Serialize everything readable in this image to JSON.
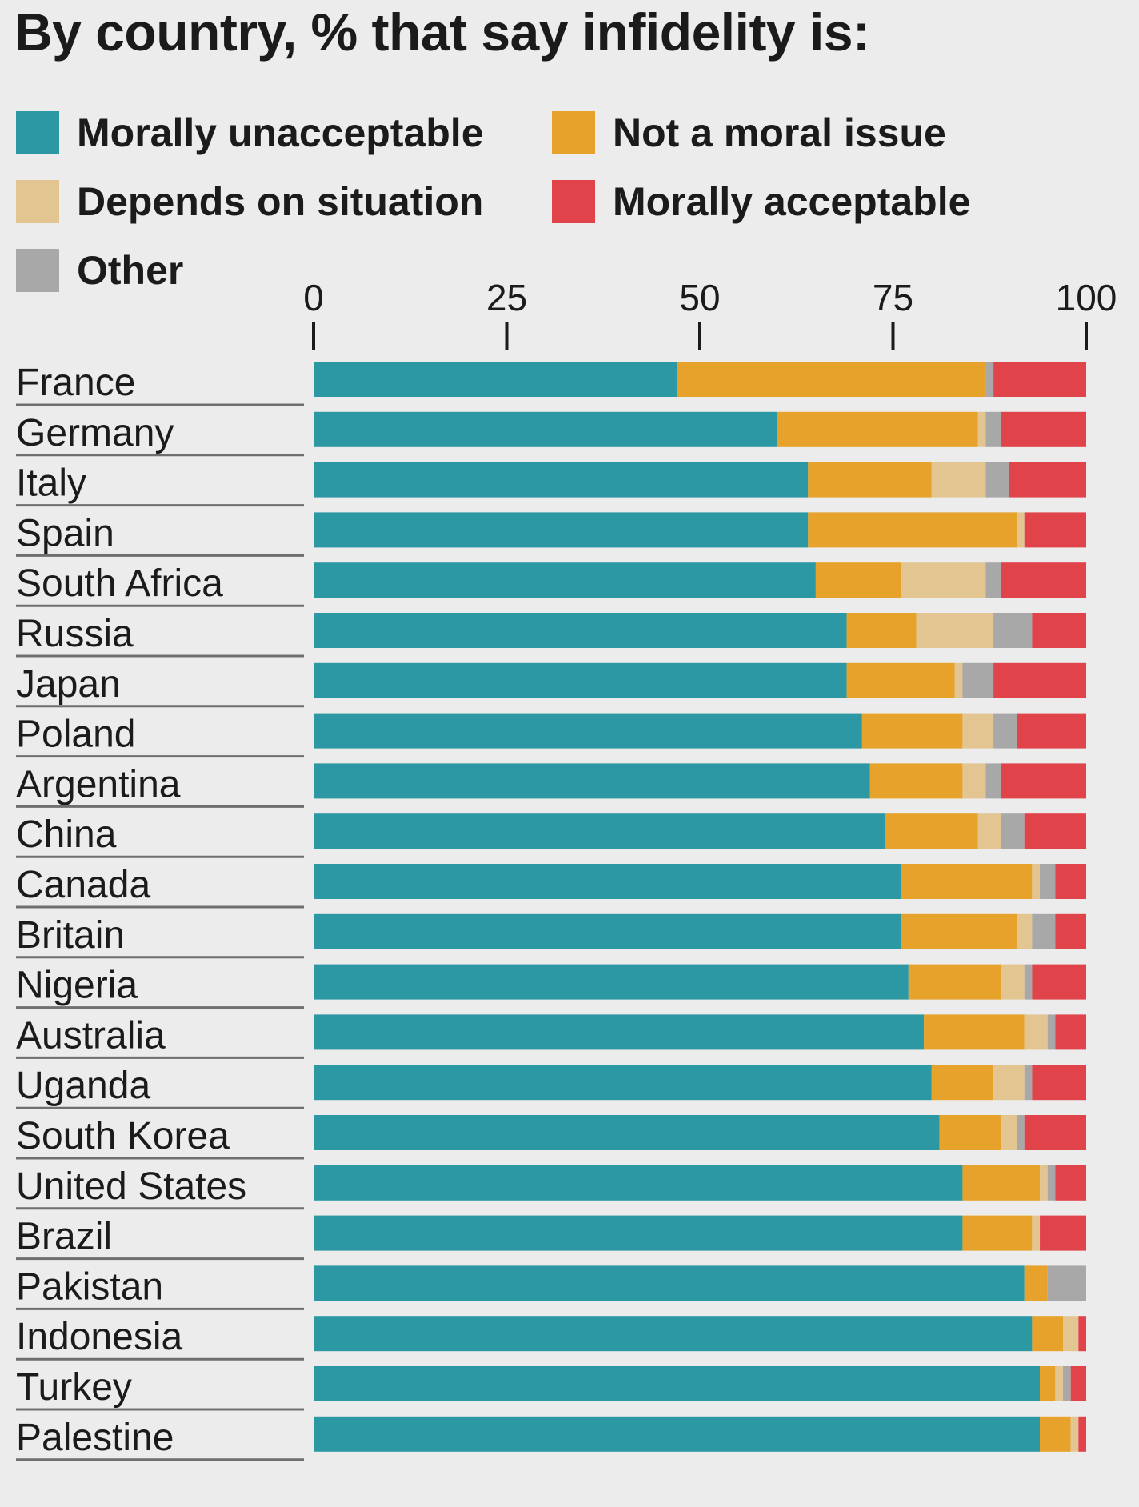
{
  "chart_data": {
    "type": "bar",
    "orientation": "horizontal",
    "stacked": true,
    "title": "By country, % that say infidelity is:",
    "xlim": [
      0,
      100
    ],
    "xticks": [
      "0",
      "25",
      "50",
      "75",
      "100"
    ],
    "categories": [
      "France",
      "Germany",
      "Italy",
      "Spain",
      "South Africa",
      "Russia",
      "Japan",
      "Poland",
      "Argentina",
      "China",
      "Canada",
      "Britain",
      "Nigeria",
      "Australia",
      "Uganda",
      "South Korea",
      "United States",
      "Brazil",
      "Pakistan",
      "Indonesia",
      "Turkey",
      "Palestine"
    ],
    "series": [
      {
        "name": "Morally unacceptable",
        "color": "#2b98a3",
        "values": [
          47,
          60,
          64,
          64,
          65,
          69,
          69,
          71,
          72,
          74,
          76,
          76,
          77,
          79,
          80,
          81,
          84,
          84,
          92,
          93,
          94,
          94
        ]
      },
      {
        "name": "Not a moral issue",
        "color": "#e6a22a",
        "values": [
          40,
          26,
          16,
          27,
          11,
          9,
          14,
          13,
          12,
          12,
          17,
          15,
          12,
          13,
          8,
          8,
          10,
          9,
          3,
          4,
          2,
          4
        ]
      },
      {
        "name": "Depends on situation",
        "color": "#e3c592",
        "values": [
          0,
          1,
          7,
          1,
          11,
          10,
          1,
          4,
          3,
          3,
          1,
          2,
          3,
          3,
          4,
          2,
          1,
          1,
          0,
          2,
          1,
          1
        ]
      },
      {
        "name": "Other",
        "color": "#a8a8a8",
        "values": [
          1,
          2,
          3,
          0,
          2,
          5,
          4,
          3,
          2,
          3,
          2,
          3,
          1,
          1,
          1,
          1,
          1,
          0,
          5,
          0,
          1,
          0
        ]
      },
      {
        "name": "Morally acceptable",
        "color": "#e0434a",
        "values": [
          12,
          11,
          10,
          8,
          11,
          7,
          12,
          9,
          11,
          8,
          4,
          4,
          7,
          4,
          7,
          8,
          4,
          6,
          0,
          1,
          2,
          1
        ]
      }
    ],
    "legend_order": [
      "Morally unacceptable",
      "Not a moral issue",
      "Depends on situation",
      "Morally acceptable",
      "Other"
    ],
    "legend_position": "top-left",
    "grid": false
  }
}
